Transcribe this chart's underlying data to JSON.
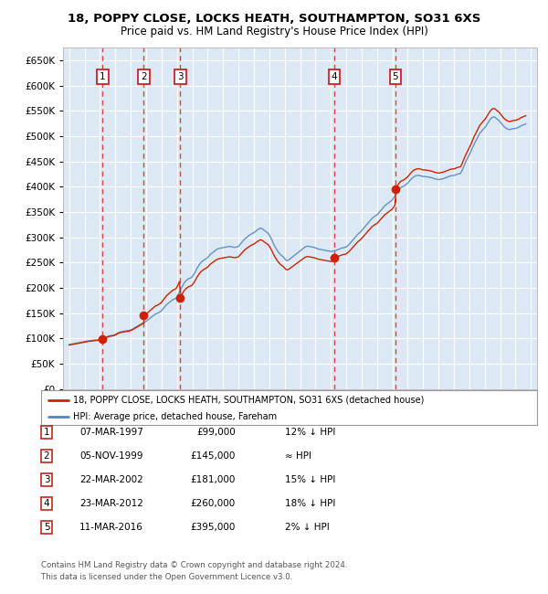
{
  "title": "18, POPPY CLOSE, LOCKS HEATH, SOUTHAMPTON, SO31 6XS",
  "subtitle": "Price paid vs. HM Land Registry's House Price Index (HPI)",
  "legend_line1": "18, POPPY CLOSE, LOCKS HEATH, SOUTHAMPTON, SO31 6XS (detached house)",
  "legend_line2": "HPI: Average price, detached house, Fareham",
  "footer1": "Contains HM Land Registry data © Crown copyright and database right 2024.",
  "footer2": "This data is licensed under the Open Government Licence v3.0.",
  "transactions": [
    {
      "num": 1,
      "date": "07-MAR-1997",
      "price": 99000,
      "note": "12% ↓ HPI",
      "year": 1997.18
    },
    {
      "num": 2,
      "date": "05-NOV-1999",
      "price": 145000,
      "note": "≈ HPI",
      "year": 1999.84
    },
    {
      "num": 3,
      "date": "22-MAR-2002",
      "price": 181000,
      "note": "15% ↓ HPI",
      "year": 2002.22
    },
    {
      "num": 4,
      "date": "23-MAR-2012",
      "price": 260000,
      "note": "18% ↓ HPI",
      "year": 2012.22
    },
    {
      "num": 5,
      "date": "11-MAR-2016",
      "price": 395000,
      "note": "2% ↓ HPI",
      "year": 2016.19
    }
  ],
  "hpi_color": "#5588bb",
  "price_color": "#cc2200",
  "dot_color": "#cc2200",
  "vline_color": "#dd2222",
  "background_color": "#dce9f5",
  "grid_color": "#ffffff",
  "ylim": [
    0,
    675000
  ],
  "yticks": [
    0,
    50000,
    100000,
    150000,
    200000,
    250000,
    300000,
    350000,
    400000,
    450000,
    500000,
    550000,
    600000,
    650000
  ],
  "xlim_start": 1994.6,
  "xlim_end": 2025.4,
  "figsize": [
    6.0,
    6.5
  ],
  "dpi": 100
}
